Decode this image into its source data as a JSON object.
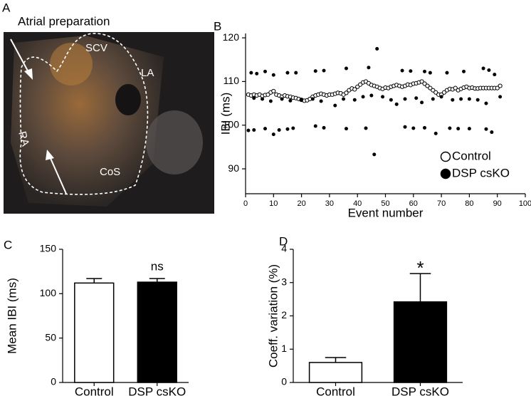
{
  "panel_a": {
    "label": "A",
    "title": "Atrial preparation",
    "structures": [
      "SCV",
      "LA",
      "RA",
      "CoS"
    ]
  },
  "chart_data": [
    {
      "type": "scatter",
      "panel": "B",
      "x_label": "Event number",
      "y_label": "IBI (ms)",
      "xlim": [
        0,
        100
      ],
      "xticks": [
        0,
        10,
        20,
        30,
        40,
        50,
        60,
        70,
        80,
        90,
        100
      ],
      "ylim": [
        84.3,
        121
      ],
      "yticks": [
        90,
        100,
        110,
        120
      ],
      "legend": "lower right",
      "series": [
        {
          "name": "Control",
          "color": "#000000",
          "marker": "open",
          "x": [
            1,
            2,
            3,
            4,
            5,
            6,
            7,
            8,
            9,
            10,
            11,
            12,
            13,
            14,
            15,
            16,
            17,
            18,
            19,
            20,
            21,
            22,
            23,
            24,
            25,
            26,
            27,
            28,
            29,
            30,
            31,
            32,
            33,
            34,
            35,
            36,
            37,
            38,
            39,
            40,
            41,
            42,
            43,
            44,
            45,
            46,
            47,
            48,
            49,
            50,
            51,
            52,
            53,
            54,
            55,
            56,
            57,
            58,
            59,
            60,
            61,
            62,
            63,
            64,
            65,
            66,
            67,
            68,
            69,
            70,
            71,
            72,
            73,
            74,
            75,
            76,
            77,
            78,
            79,
            80,
            81,
            82,
            83,
            84,
            85,
            86,
            87,
            88,
            89,
            90,
            91
          ],
          "values": [
            107,
            106.8,
            107,
            106.8,
            107,
            106.7,
            106.9,
            107,
            107.5,
            107.8,
            107,
            106.8,
            106.5,
            106.8,
            106.6,
            106.5,
            106.3,
            106.2,
            106,
            105.8,
            105.6,
            105.7,
            106,
            106.5,
            106.8,
            107,
            107.2,
            107,
            106.8,
            107,
            107,
            107.2,
            107.4,
            107.3,
            107,
            107.4,
            108,
            108.4,
            108.2,
            108.8,
            109.3,
            109.8,
            110,
            109.6,
            109.2,
            109,
            108.8,
            108.5,
            108.3,
            108.6,
            108.5,
            108.8,
            109,
            109.2,
            109,
            108.8,
            109,
            109.3,
            109.2,
            109.5,
            109.6,
            109.8,
            110,
            109.5,
            109,
            108.5,
            108,
            107.5,
            107,
            107,
            107.5,
            108,
            108.3,
            108.2,
            108.5,
            108,
            108.3,
            108.6,
            108.8,
            108.5,
            108.6,
            108.4,
            108.4,
            108.5,
            108.5,
            108.5,
            108.5,
            108.5,
            108.5,
            108.5,
            109
          ]
        },
        {
          "name": "DSP csKO",
          "color": "#000000",
          "marker": "filled",
          "x": [
            2,
            4,
            7,
            10,
            15,
            18,
            25,
            28,
            36,
            44,
            47,
            56,
            59,
            64,
            66,
            72,
            78,
            85,
            87,
            89,
            3,
            6,
            9,
            13,
            16,
            20,
            24,
            27,
            32,
            35,
            39,
            42,
            45,
            49,
            52,
            54,
            57,
            61,
            63,
            67,
            70,
            74,
            77,
            80,
            83,
            86,
            91,
            1,
            3,
            7,
            10,
            12,
            15,
            17,
            25,
            28,
            36,
            43,
            46,
            57,
            60,
            64,
            68,
            73,
            76,
            80,
            86,
            88
          ],
          "values": [
            112,
            111.8,
            112.3,
            111.5,
            112,
            112,
            112.4,
            112.5,
            113,
            113.2,
            117.5,
            112.5,
            112.4,
            112.3,
            112,
            112,
            112.3,
            113,
            112.6,
            111.6,
            106.2,
            106,
            105.5,
            106,
            105.6,
            105.8,
            106,
            105.5,
            104.5,
            106,
            105.8,
            106.5,
            106.8,
            106.5,
            105.8,
            104.8,
            106,
            106.2,
            105.2,
            106,
            106.5,
            105.8,
            106,
            106,
            105.8,
            105,
            106.5,
            98.8,
            98.9,
            99.2,
            97.9,
            98.9,
            99.1,
            99.3,
            99.8,
            99.4,
            99.2,
            99.3,
            93.3,
            99.6,
            99.3,
            99.4,
            98.1,
            99.3,
            99.2,
            99.2,
            99.1,
            98.4
          ]
        }
      ]
    },
    {
      "type": "bar",
      "panel": "C",
      "y_label": "Mean IBI (ms)",
      "categories": [
        "Control",
        "DSP csKO"
      ],
      "values": [
        112,
        113
      ],
      "errors": [
        5,
        4
      ],
      "colors": [
        "#ffffff",
        "#000000"
      ],
      "annotations": [
        null,
        "ns"
      ],
      "ylim": [
        0,
        150
      ],
      "yticks": [
        0,
        50,
        100,
        150
      ]
    },
    {
      "type": "bar",
      "panel": "D",
      "y_label": "Coeff. variation (%)",
      "categories": [
        "Control",
        "DSP csKO"
      ],
      "values": [
        0.6,
        2.42
      ],
      "errors": [
        0.15,
        0.85
      ],
      "colors": [
        "#ffffff",
        "#000000"
      ],
      "annotations": [
        null,
        "*"
      ],
      "ylim": [
        0,
        4
      ],
      "yticks": [
        0,
        1,
        2,
        3,
        4
      ]
    }
  ]
}
